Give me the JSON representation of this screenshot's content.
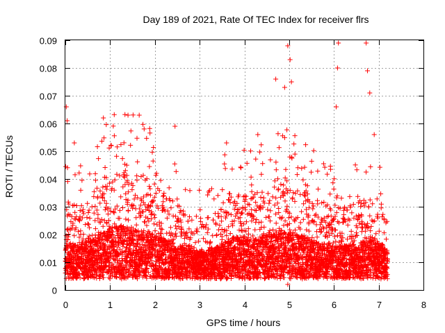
{
  "chart_data": {
    "type": "scatter",
    "title": "Day 189 of 2021, Rate Of TEC Index for receiver flrs",
    "xlabel": "GPS time / hours",
    "ylabel": "ROTI / TECUs",
    "xlim": [
      0,
      8
    ],
    "ylim": [
      0,
      0.09
    ],
    "x_ticks": [
      "0",
      "1",
      "2",
      "3",
      "4",
      "5",
      "6",
      "7",
      "8"
    ],
    "y_ticks": [
      "0",
      "0.01",
      "0.02",
      "0.03",
      "0.04",
      "0.05",
      "0.06",
      "0.07",
      "0.08",
      "0.09"
    ],
    "grid": true,
    "marker": "+",
    "color": "#ff0000",
    "series": [
      {
        "name": "ROTI",
        "x_range": [
          0,
          7.2
        ],
        "sample_interval_hours": 0.0021,
        "baseline_envelope": [
          [
            0.0,
            0.012
          ],
          [
            0.3,
            0.011
          ],
          [
            0.6,
            0.013
          ],
          [
            0.9,
            0.016
          ],
          [
            1.2,
            0.018
          ],
          [
            1.5,
            0.017
          ],
          [
            1.8,
            0.016
          ],
          [
            2.1,
            0.014
          ],
          [
            2.4,
            0.012
          ],
          [
            2.7,
            0.01
          ],
          [
            3.0,
            0.009
          ],
          [
            3.3,
            0.01
          ],
          [
            3.6,
            0.013
          ],
          [
            3.9,
            0.014
          ],
          [
            4.2,
            0.013
          ],
          [
            4.5,
            0.014
          ],
          [
            4.8,
            0.016
          ],
          [
            5.1,
            0.015
          ],
          [
            5.4,
            0.014
          ],
          [
            5.7,
            0.012
          ],
          [
            6.0,
            0.011
          ],
          [
            6.3,
            0.011
          ],
          [
            6.6,
            0.012
          ],
          [
            6.9,
            0.013
          ],
          [
            7.2,
            0.01
          ]
        ],
        "notable_points": [
          {
            "x": 0.02,
            "y": 0.066
          },
          {
            "x": 0.04,
            "y": 0.061
          },
          {
            "x": 0.2,
            "y": 0.053
          },
          {
            "x": 0.85,
            "y": 0.062
          },
          {
            "x": 1.4,
            "y": 0.063
          },
          {
            "x": 1.65,
            "y": 0.063
          },
          {
            "x": 2.45,
            "y": 0.059
          },
          {
            "x": 3.6,
            "y": 0.053
          },
          {
            "x": 4.3,
            "y": 0.056
          },
          {
            "x": 4.7,
            "y": 0.076
          },
          {
            "x": 4.9,
            "y": 0.073
          },
          {
            "x": 4.97,
            "y": 0.088
          },
          {
            "x": 5.02,
            "y": 0.083
          },
          {
            "x": 5.05,
            "y": 0.075
          },
          {
            "x": 6.05,
            "y": 0.066
          },
          {
            "x": 6.1,
            "y": 0.089
          },
          {
            "x": 6.08,
            "y": 0.08
          },
          {
            "x": 6.72,
            "y": 0.089
          },
          {
            "x": 6.75,
            "y": 0.079
          },
          {
            "x": 6.8,
            "y": 0.071
          },
          {
            "x": 6.9,
            "y": 0.056
          },
          {
            "x": 4.97,
            "y": 0.002
          }
        ]
      }
    ]
  }
}
